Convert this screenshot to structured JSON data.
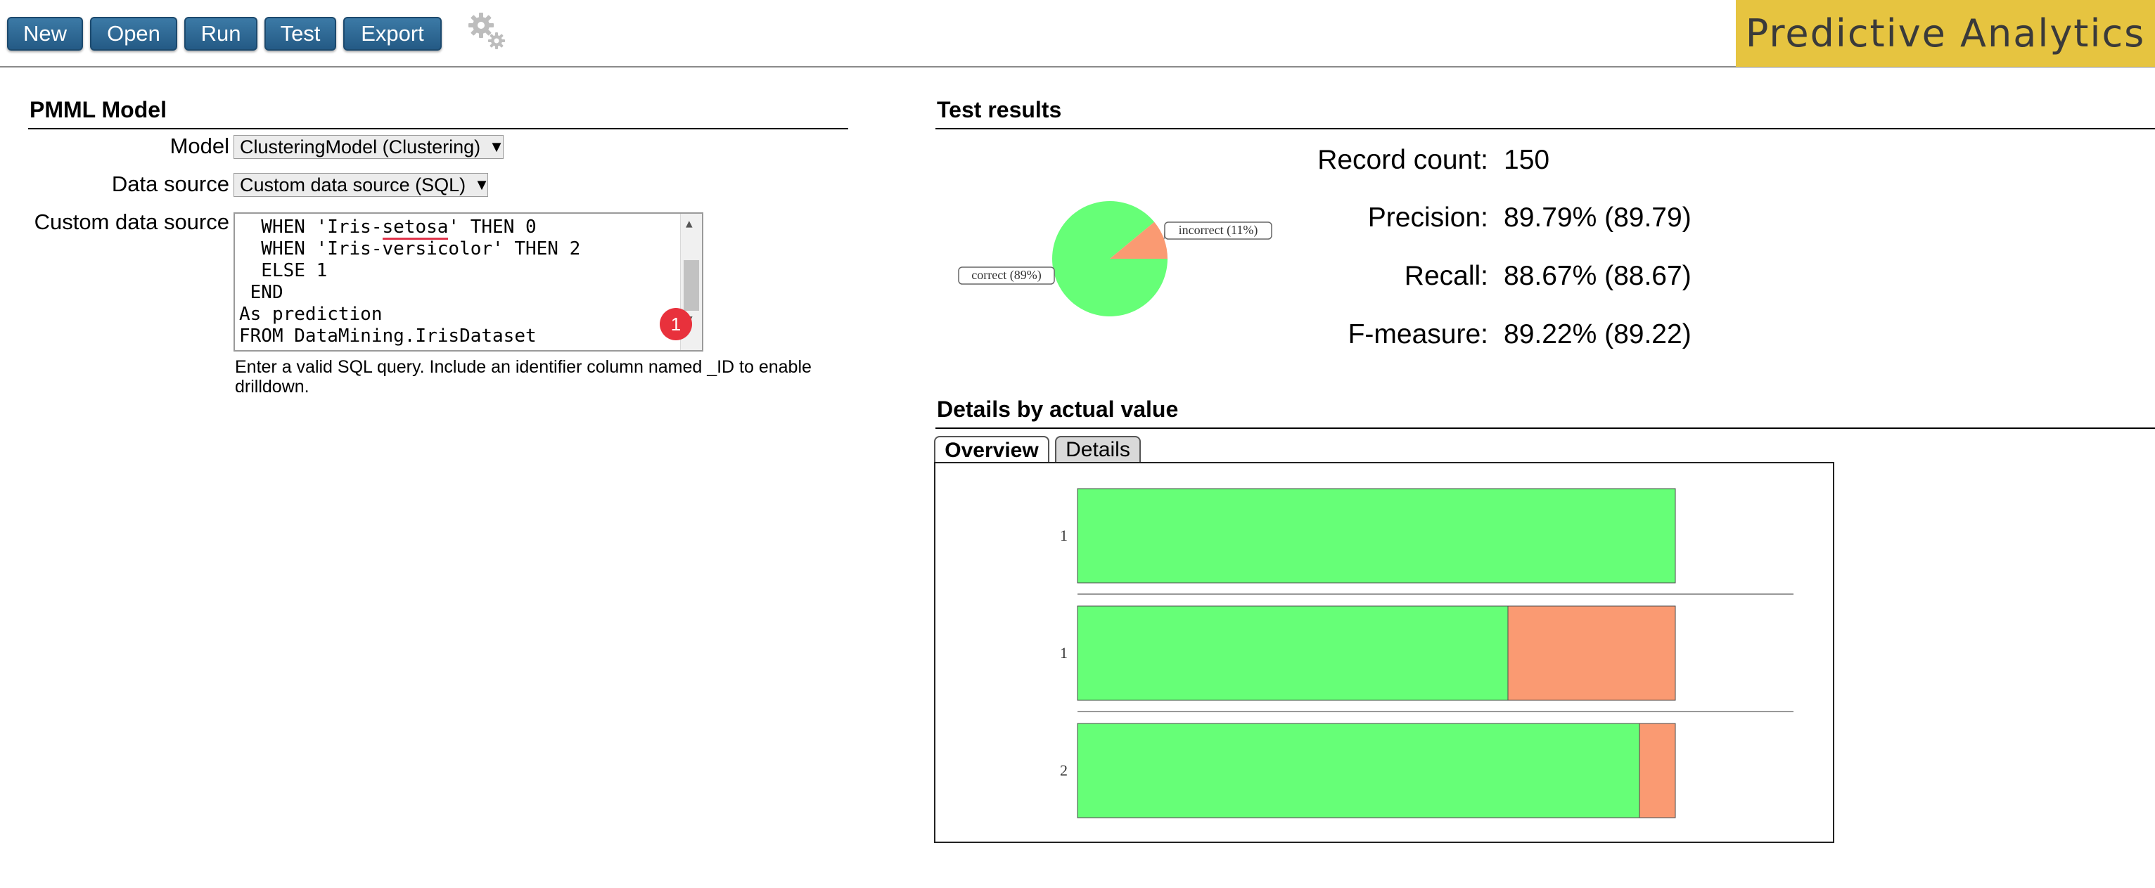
{
  "toolbar": {
    "buttons": [
      "New",
      "Open",
      "Run",
      "Test",
      "Export"
    ],
    "settings_icon": "gear-icon",
    "brand": "Predictive Analytics",
    "colors": {
      "button": "#2d6a98",
      "brand_bg": "#e6c440"
    }
  },
  "model_section": {
    "title": "PMML Model",
    "model_label": "Model",
    "model_value": "ClusteringModel (Clustering)",
    "datasource_label": "Data source",
    "datasource_value": "Custom data source (SQL)",
    "custom_label": "Custom data source",
    "sql_lines": [
      "  WHEN 'Iris-setosa' THEN 0",
      "  WHEN 'Iris-versicolor' THEN 2",
      "  ELSE 1",
      " END",
      "As prediction",
      "FROM DataMining.IrisDataset"
    ],
    "badge_count": "1",
    "hint": "Enter a valid SQL query. Include an identifier column named _ID to enable drilldown."
  },
  "test_results": {
    "title": "Test results",
    "metrics": [
      {
        "label": "Record count:",
        "value": "150"
      },
      {
        "label": "Precision:",
        "value": "89.79% (89.79)"
      },
      {
        "label": "Recall:",
        "value": "88.67% (88.67)"
      },
      {
        "label": "F-measure:",
        "value": "89.22% (89.22)"
      }
    ]
  },
  "details": {
    "title": "Details by actual value",
    "tabs": [
      {
        "label": "Overview",
        "active": true
      },
      {
        "label": "Details",
        "active": false
      }
    ]
  },
  "chart_data": [
    {
      "type": "pie",
      "slices": [
        {
          "label": "correct (89%)",
          "value": 89,
          "color": "#66ff77"
        },
        {
          "label": "incorrect (11%)",
          "value": 11,
          "color": "#fa9a72"
        }
      ]
    },
    {
      "type": "bar",
      "orientation": "horizontal",
      "stacked": true,
      "categories": [
        "1",
        "1",
        "2"
      ],
      "series": [
        {
          "values": [
            1.0,
            0.72,
            0.94
          ],
          "color": "#66ff77"
        },
        {
          "values": [
            0.0,
            0.28,
            0.06
          ],
          "color": "#fa9a72"
        }
      ]
    }
  ]
}
